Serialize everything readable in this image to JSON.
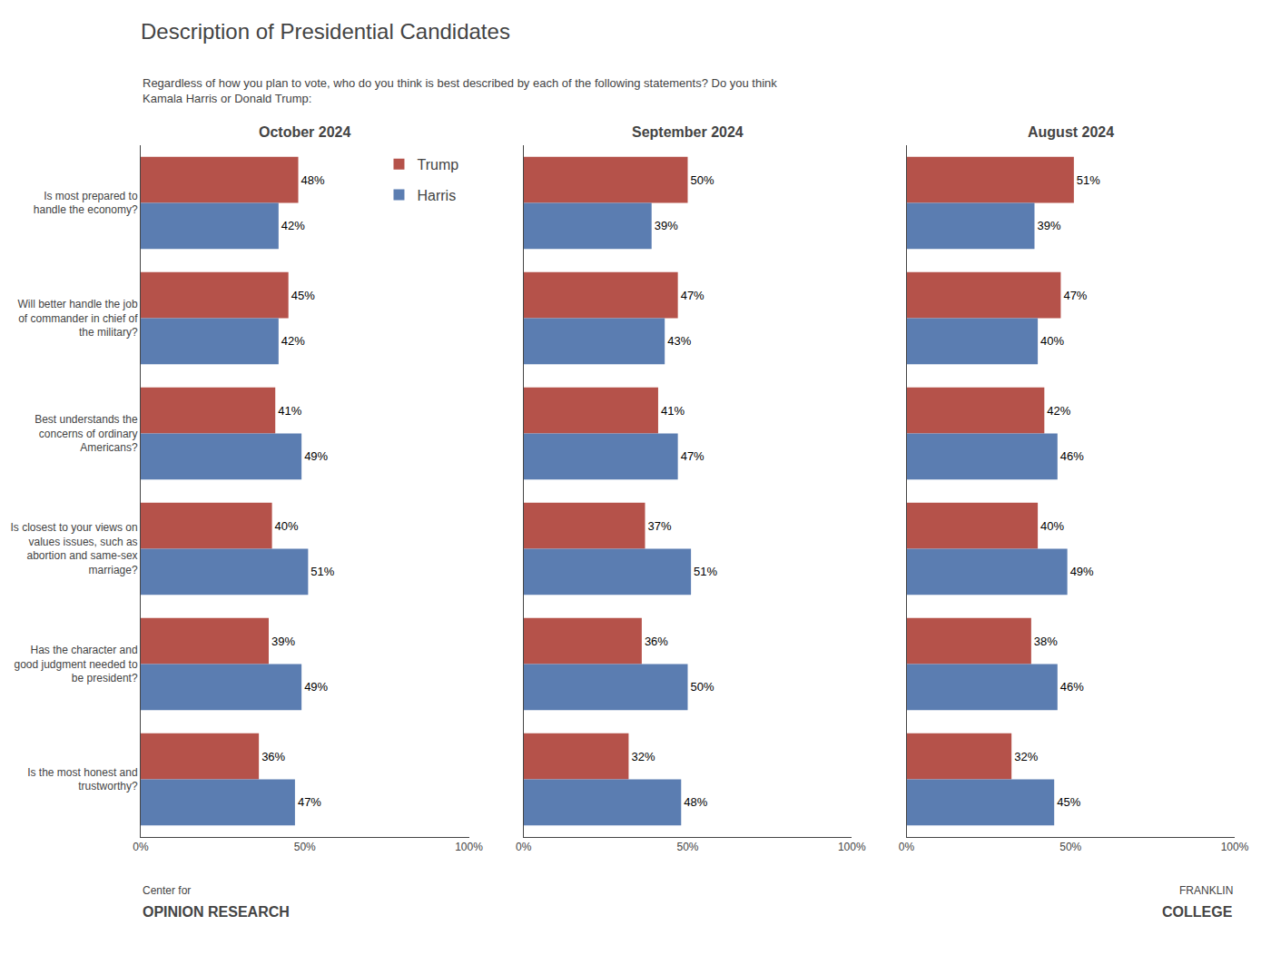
{
  "title": "Description of Presidential Candidates",
  "subtitle": "Regardless of how you plan to vote, who do you think is best described by each of the following statements? Do you think\nKamala Harris or Donald Trump:",
  "annotations": [
    "Center for",
    "OPINION RESEARCH",
    "FRANKLIN",
    "COLLEGE"
  ],
  "chart_data": [
    {
      "type": "bar",
      "title": "October 2024",
      "orientation": "horizontal",
      "data_labels": true,
      "grid": false,
      "legend": "upper right",
      "categories": [
        "Is most prepared to\nhandle the economy?",
        "Will better handle the job\nof commander in chief of\nthe military?",
        "Best understands the\nconcerns of ordinary\nAmericans?",
        "Is closest to your views on\nvalues issues, such as\nabortion and same-sex\nmarriage?",
        "Has the character and\ngood judgment needed to\nbe president?",
        "Is the most honest and\ntrustworthy?"
      ],
      "series": [
        {
          "name": "Trump",
          "color": "#B5524A",
          "values": [
            48,
            45,
            41,
            40,
            39,
            36
          ],
          "value_labels": [
            "48%",
            "45%",
            "41%",
            "40%",
            "39%",
            "36%"
          ]
        },
        {
          "name": "Harris",
          "color": "#5B7DB1",
          "values": [
            42,
            42,
            49,
            51,
            49,
            47
          ],
          "value_labels": [
            "42%",
            "42%",
            "49%",
            "51%",
            "49%",
            "47%"
          ]
        }
      ],
      "xlim": [
        0,
        100
      ],
      "xticks": [
        {
          "value": 0,
          "label": "0%"
        },
        {
          "value": 50,
          "label": "50%"
        },
        {
          "value": 100,
          "label": "100%"
        }
      ]
    },
    {
      "type": "bar",
      "title": "September 2024",
      "orientation": "horizontal",
      "data_labels": true,
      "grid": false,
      "tick_labels": "x",
      "categories": [
        "Is most prepared to\nhandle the economy?",
        "Will better handle the job\nof commander in chief of\nthe military?",
        "Best understands the\nconcerns of ordinary\nAmericans?",
        "Is closest to your views on\nvalues issues, such as\nabortion and same-sex\nmarriage?",
        "Has the character and\ngood judgment needed to\nbe president?",
        "Is the most honest and\ntrustworthy?"
      ],
      "series": [
        {
          "name": "Trump",
          "color": "#B5524A",
          "values": [
            50,
            47,
            41,
            37,
            36,
            32
          ],
          "value_labels": [
            "50%",
            "47%",
            "41%",
            "37%",
            "36%",
            "32%"
          ]
        },
        {
          "name": "Harris",
          "color": "#5B7DB1",
          "values": [
            39,
            43,
            47,
            51,
            50,
            48
          ],
          "value_labels": [
            "39%",
            "43%",
            "47%",
            "51%",
            "50%",
            "48%"
          ]
        }
      ],
      "xlim": [
        0,
        100
      ],
      "xticks": [
        {
          "value": 0,
          "label": "0%"
        },
        {
          "value": 50,
          "label": "50%"
        },
        {
          "value": 100,
          "label": "100%"
        }
      ]
    },
    {
      "type": "bar",
      "title": "August 2024",
      "orientation": "horizontal",
      "data_labels": true,
      "grid": false,
      "tick_labels": "x",
      "categories": [
        "Is most prepared to\nhandle the economy?",
        "Will better handle the job\nof commander in chief of\nthe military?",
        "Best understands the\nconcerns of ordinary\nAmericans?",
        "Is closest to your views on\nvalues issues, such as\nabortion and same-sex\nmarriage?",
        "Has the character and\ngood judgment needed to\nbe president?",
        "Is the most honest and\ntrustworthy?"
      ],
      "series": [
        {
          "name": "Trump",
          "color": "#B5524A",
          "values": [
            51,
            47,
            42,
            40,
            38,
            32
          ],
          "value_labels": [
            "51%",
            "47%",
            "42%",
            "40%",
            "38%",
            "32%"
          ]
        },
        {
          "name": "Harris",
          "color": "#5B7DB1",
          "values": [
            39,
            40,
            46,
            49,
            46,
            45
          ],
          "value_labels": [
            "39%",
            "40%",
            "46%",
            "49%",
            "46%",
            "45%"
          ]
        }
      ],
      "xlim": [
        0,
        100
      ],
      "xticks": [
        {
          "value": 0,
          "label": "0%"
        },
        {
          "value": 50,
          "label": "50%"
        },
        {
          "value": 100,
          "label": "100%"
        }
      ]
    }
  ]
}
